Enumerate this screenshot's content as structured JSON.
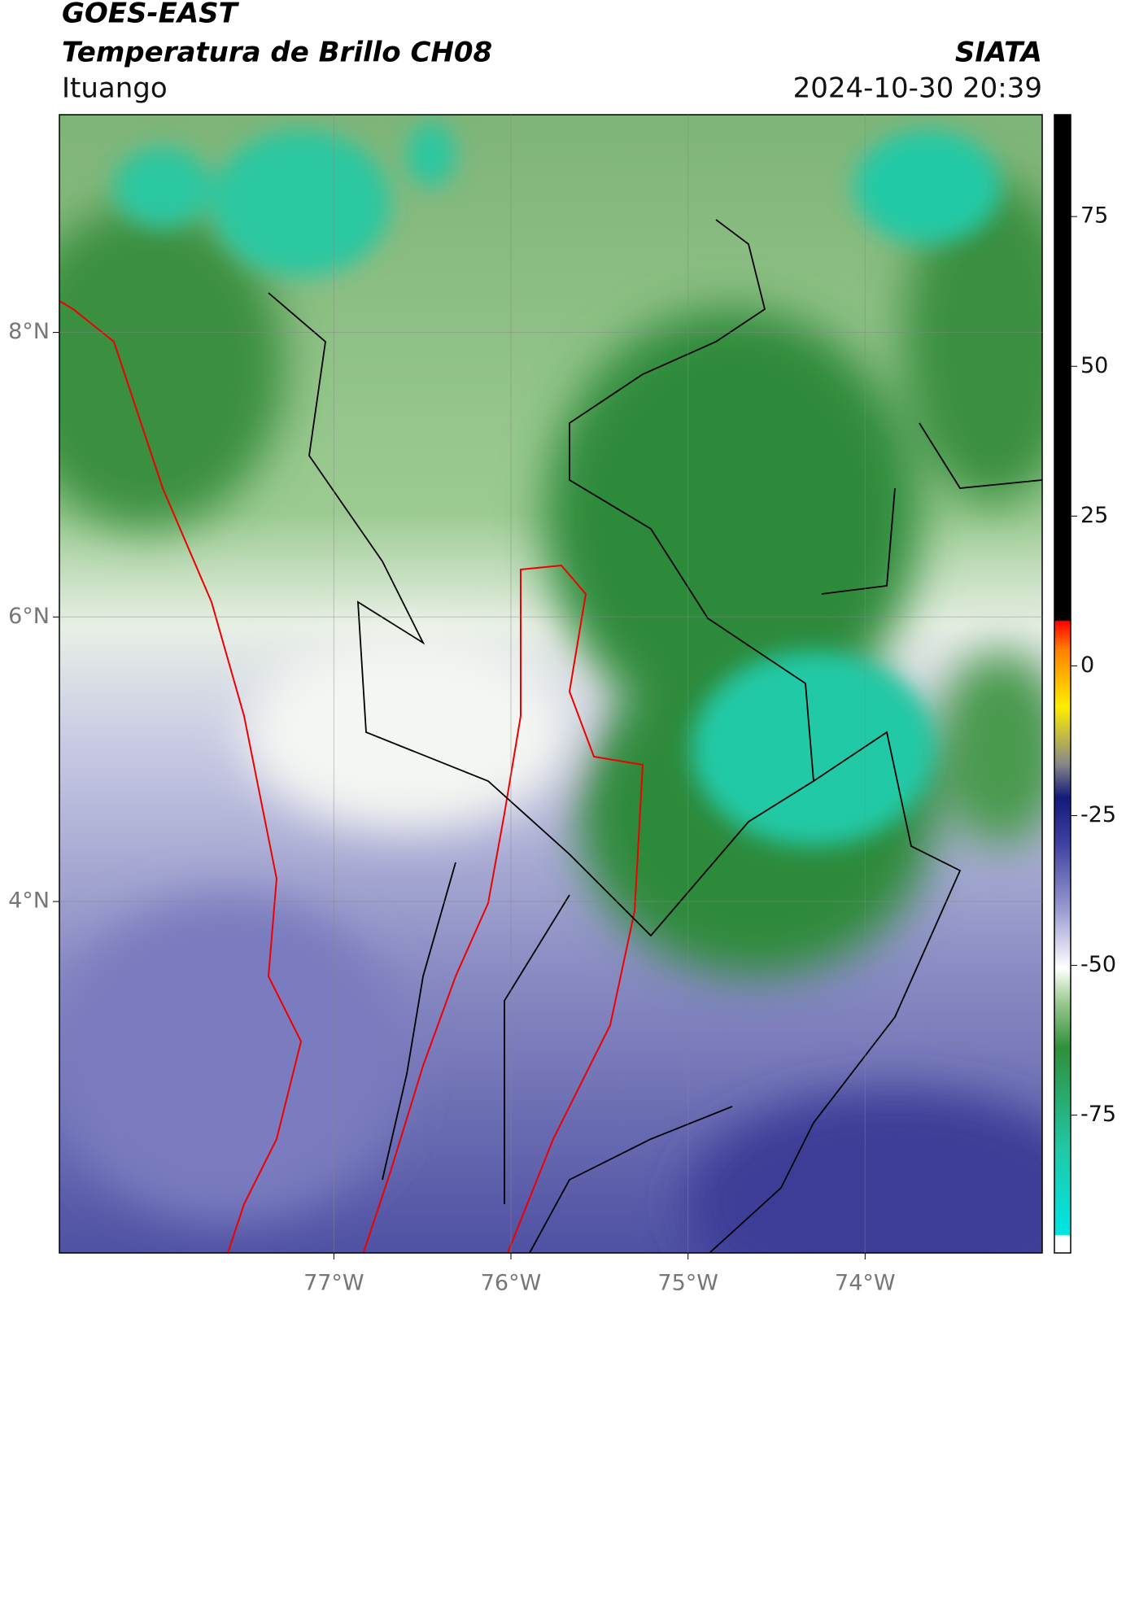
{
  "header": {
    "title_line1": "GOES-EAST",
    "title_line2": "Temperatura de Brillo CH08",
    "brand": "SIATA",
    "location": "Ituango",
    "timestamp": "2024-10-30 20:39"
  },
  "map": {
    "xlim": [
      -78.55,
      -73.0
    ],
    "ylim": [
      1.53,
      9.53
    ],
    "xticks": [
      {
        "value": -77,
        "label": "77°W"
      },
      {
        "value": -76,
        "label": "76°W"
      },
      {
        "value": -75,
        "label": "75°W"
      },
      {
        "value": -74,
        "label": "74°W"
      }
    ],
    "yticks": [
      {
        "value": 8,
        "label": "8°N"
      },
      {
        "value": 6,
        "label": "6°N"
      },
      {
        "value": 4,
        "label": "4°N"
      }
    ],
    "grid": true
  },
  "colorbar": {
    "lim": [
      -98,
      92
    ],
    "ticks": [
      75,
      50,
      25,
      0,
      -25,
      -50,
      -75
    ]
  }
}
